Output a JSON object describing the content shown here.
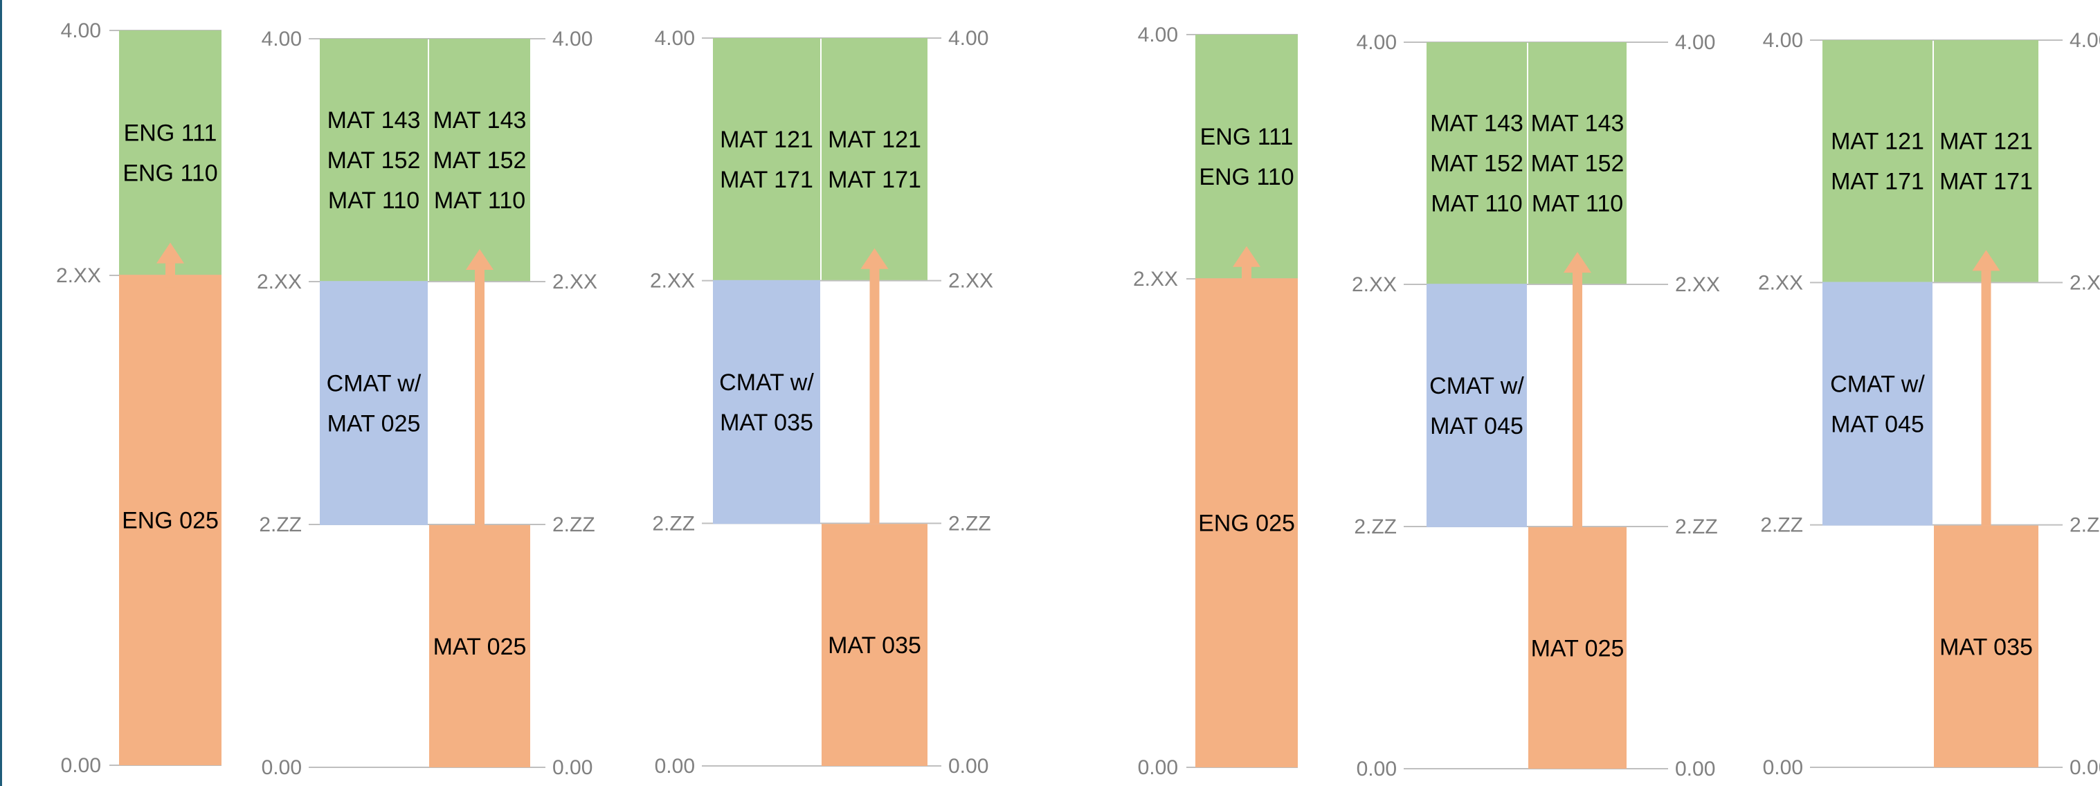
{
  "colors": {
    "green": "#a9d08e",
    "blue": "#b4c6e7",
    "orange": "#f4b183",
    "axis": "#bfbfbf",
    "tick_text": "#808080",
    "left_edge": "#1f5c7a"
  },
  "chart_data": [
    {
      "type": "bar",
      "title": "",
      "y_ticks": [
        "0.00",
        "2.XX",
        "4.00"
      ],
      "right_axis": false,
      "columns": [
        {
          "segments": [
            {
              "from": 0,
              "to": 2.67,
              "color": "orange",
              "lines": [
                "ENG 025"
              ]
            },
            {
              "from": 2.67,
              "to": 4,
              "color": "green",
              "lines": [
                "ENG 111",
                "ENG 110"
              ]
            }
          ]
        }
      ],
      "arrows": [
        {
          "column": 0,
          "from": 2.6,
          "to": 2.83
        }
      ]
    },
    {
      "type": "bar",
      "title": "",
      "y_ticks": [
        "0.00",
        "2.ZZ",
        "2.XX",
        "4.00"
      ],
      "right_axis": true,
      "columns": [
        {
          "segments": [
            {
              "from": 1.33,
              "to": 2.67,
              "color": "blue",
              "lines": [
                "CMAT w/",
                "MAT 025"
              ]
            },
            {
              "from": 2.67,
              "to": 4,
              "color": "green",
              "lines": [
                "MAT 143",
                "MAT 152",
                "MAT 110"
              ]
            }
          ]
        },
        {
          "segments": [
            {
              "from": 0,
              "to": 1.33,
              "color": "orange",
              "lines": [
                "MAT 025"
              ]
            },
            {
              "from": 2.67,
              "to": 4,
              "color": "green",
              "lines": [
                "MAT 143",
                "MAT 152",
                "MAT 110"
              ]
            }
          ]
        }
      ],
      "arrows": [
        {
          "column": 1,
          "from": 1.33,
          "to": 2.83
        }
      ]
    },
    {
      "type": "bar",
      "title": "",
      "y_ticks": [
        "0.00",
        "2.ZZ",
        "2.XX",
        "4.00"
      ],
      "right_axis": true,
      "columns": [
        {
          "segments": [
            {
              "from": 1.33,
              "to": 2.67,
              "color": "blue",
              "lines": [
                "CMAT w/",
                "MAT 035"
              ]
            },
            {
              "from": 2.67,
              "to": 4,
              "color": "green",
              "lines": [
                "MAT 121",
                "MAT 171"
              ]
            }
          ]
        },
        {
          "segments": [
            {
              "from": 0,
              "to": 1.33,
              "color": "orange",
              "lines": [
                "MAT 035"
              ]
            },
            {
              "from": 2.67,
              "to": 4,
              "color": "green",
              "lines": [
                "MAT 121",
                "MAT 171"
              ]
            }
          ]
        }
      ],
      "arrows": [
        {
          "column": 1,
          "from": 1.33,
          "to": 2.83
        }
      ]
    },
    {
      "type": "bar",
      "title": "",
      "y_ticks": [
        "0.00",
        "2.XX",
        "4.00"
      ],
      "right_axis": false,
      "columns": [
        {
          "segments": [
            {
              "from": 0,
              "to": 2.67,
              "color": "orange",
              "lines": [
                "ENG 025"
              ]
            },
            {
              "from": 2.67,
              "to": 4,
              "color": "green",
              "lines": [
                "ENG 111",
                "ENG 110"
              ]
            }
          ]
        }
      ],
      "arrows": [
        {
          "column": 0,
          "from": 2.6,
          "to": 2.83
        }
      ]
    },
    {
      "type": "bar",
      "title": "",
      "y_ticks": [
        "0.00",
        "2.ZZ",
        "2.XX",
        "4.00"
      ],
      "right_axis": true,
      "columns": [
        {
          "segments": [
            {
              "from": 1.33,
              "to": 2.67,
              "color": "blue",
              "lines": [
                "CMAT w/",
                "MAT 045"
              ]
            },
            {
              "from": 2.67,
              "to": 4,
              "color": "green",
              "lines": [
                "MAT 143",
                "MAT 152",
                "MAT 110"
              ]
            }
          ]
        },
        {
          "segments": [
            {
              "from": 0,
              "to": 1.33,
              "color": "orange",
              "lines": [
                "MAT 025"
              ]
            },
            {
              "from": 2.67,
              "to": 4,
              "color": "green",
              "lines": [
                "MAT 143",
                "MAT 152",
                "MAT 110"
              ]
            }
          ]
        }
      ],
      "arrows": [
        {
          "column": 1,
          "from": 1.33,
          "to": 2.83
        }
      ]
    },
    {
      "type": "bar",
      "title": "",
      "y_ticks": [
        "0.00",
        "2.ZZ",
        "2.XX",
        "4.00"
      ],
      "right_axis": true,
      "columns": [
        {
          "segments": [
            {
              "from": 1.33,
              "to": 2.67,
              "color": "blue",
              "lines": [
                "CMAT w/",
                "MAT 045"
              ]
            },
            {
              "from": 2.67,
              "to": 4,
              "color": "green",
              "lines": [
                "MAT 121",
                "MAT 171"
              ]
            }
          ]
        },
        {
          "segments": [
            {
              "from": 0,
              "to": 1.33,
              "color": "orange",
              "lines": [
                "MAT 035"
              ]
            },
            {
              "from": 2.67,
              "to": 4,
              "color": "green",
              "lines": [
                "MAT 121",
                "MAT 171"
              ]
            }
          ]
        }
      ],
      "arrows": [
        {
          "column": 1,
          "from": 1.33,
          "to": 2.83
        }
      ]
    }
  ]
}
